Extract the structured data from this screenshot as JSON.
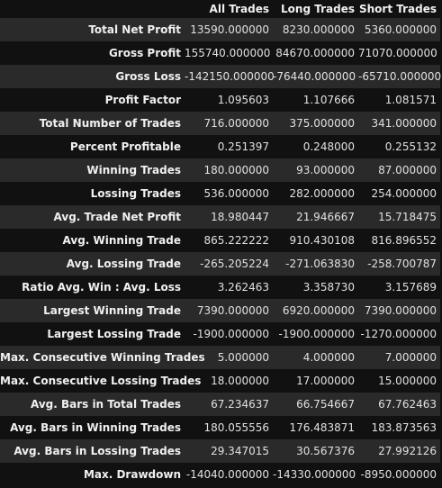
{
  "table": {
    "columns": [
      "",
      "All Trades",
      "Long Trades",
      "Short Trades"
    ],
    "rows": [
      {
        "label": "Total Net Profit",
        "all": "13590.000000",
        "long": "8230.000000",
        "short": "5360.000000"
      },
      {
        "label": "Gross Profit",
        "all": "155740.000000",
        "long": "84670.000000",
        "short": "71070.000000"
      },
      {
        "label": "Gross Loss",
        "all": "-142150.000000",
        "long": "-76440.000000",
        "short": "-65710.000000"
      },
      {
        "label": "Profit Factor",
        "all": "1.095603",
        "long": "1.107666",
        "short": "1.081571"
      },
      {
        "label": "Total Number of Trades",
        "all": "716.000000",
        "long": "375.000000",
        "short": "341.000000"
      },
      {
        "label": "Percent Profitable",
        "all": "0.251397",
        "long": "0.248000",
        "short": "0.255132"
      },
      {
        "label": "Winning Trades",
        "all": "180.000000",
        "long": "93.000000",
        "short": "87.000000"
      },
      {
        "label": "Lossing Trades",
        "all": "536.000000",
        "long": "282.000000",
        "short": "254.000000"
      },
      {
        "label": "Avg. Trade Net Profit",
        "all": "18.980447",
        "long": "21.946667",
        "short": "15.718475"
      },
      {
        "label": "Avg. Winning Trade",
        "all": "865.222222",
        "long": "910.430108",
        "short": "816.896552"
      },
      {
        "label": "Avg. Lossing Trade",
        "all": "-265.205224",
        "long": "-271.063830",
        "short": "-258.700787"
      },
      {
        "label": "Ratio Avg. Win : Avg. Loss",
        "all": "3.262463",
        "long": "3.358730",
        "short": "3.157689"
      },
      {
        "label": "Largest Winning Trade",
        "all": "7390.000000",
        "long": "6920.000000",
        "short": "7390.000000"
      },
      {
        "label": "Largest Lossing Trade",
        "all": "-1900.000000",
        "long": "-1900.000000",
        "short": "-1270.000000"
      },
      {
        "label": "Max. Consecutive Winning Trades",
        "all": "5.000000",
        "long": "4.000000",
        "short": "7.000000"
      },
      {
        "label": "Max. Consecutive Lossing Trades",
        "all": "18.000000",
        "long": "17.000000",
        "short": "15.000000"
      },
      {
        "label": "Avg. Bars in Total Trades",
        "all": "67.234637",
        "long": "66.754667",
        "short": "67.762463"
      },
      {
        "label": "Avg. Bars in Winning Trades",
        "all": "180.055556",
        "long": "176.483871",
        "short": "183.873563"
      },
      {
        "label": "Avg. Bars in Lossing Trades",
        "all": "29.347015",
        "long": "30.567376",
        "short": "27.992126"
      },
      {
        "label": "Max. Drawdown",
        "all": "-14040.000000",
        "long": "-14330.000000",
        "short": "-8950.000000"
      }
    ]
  }
}
